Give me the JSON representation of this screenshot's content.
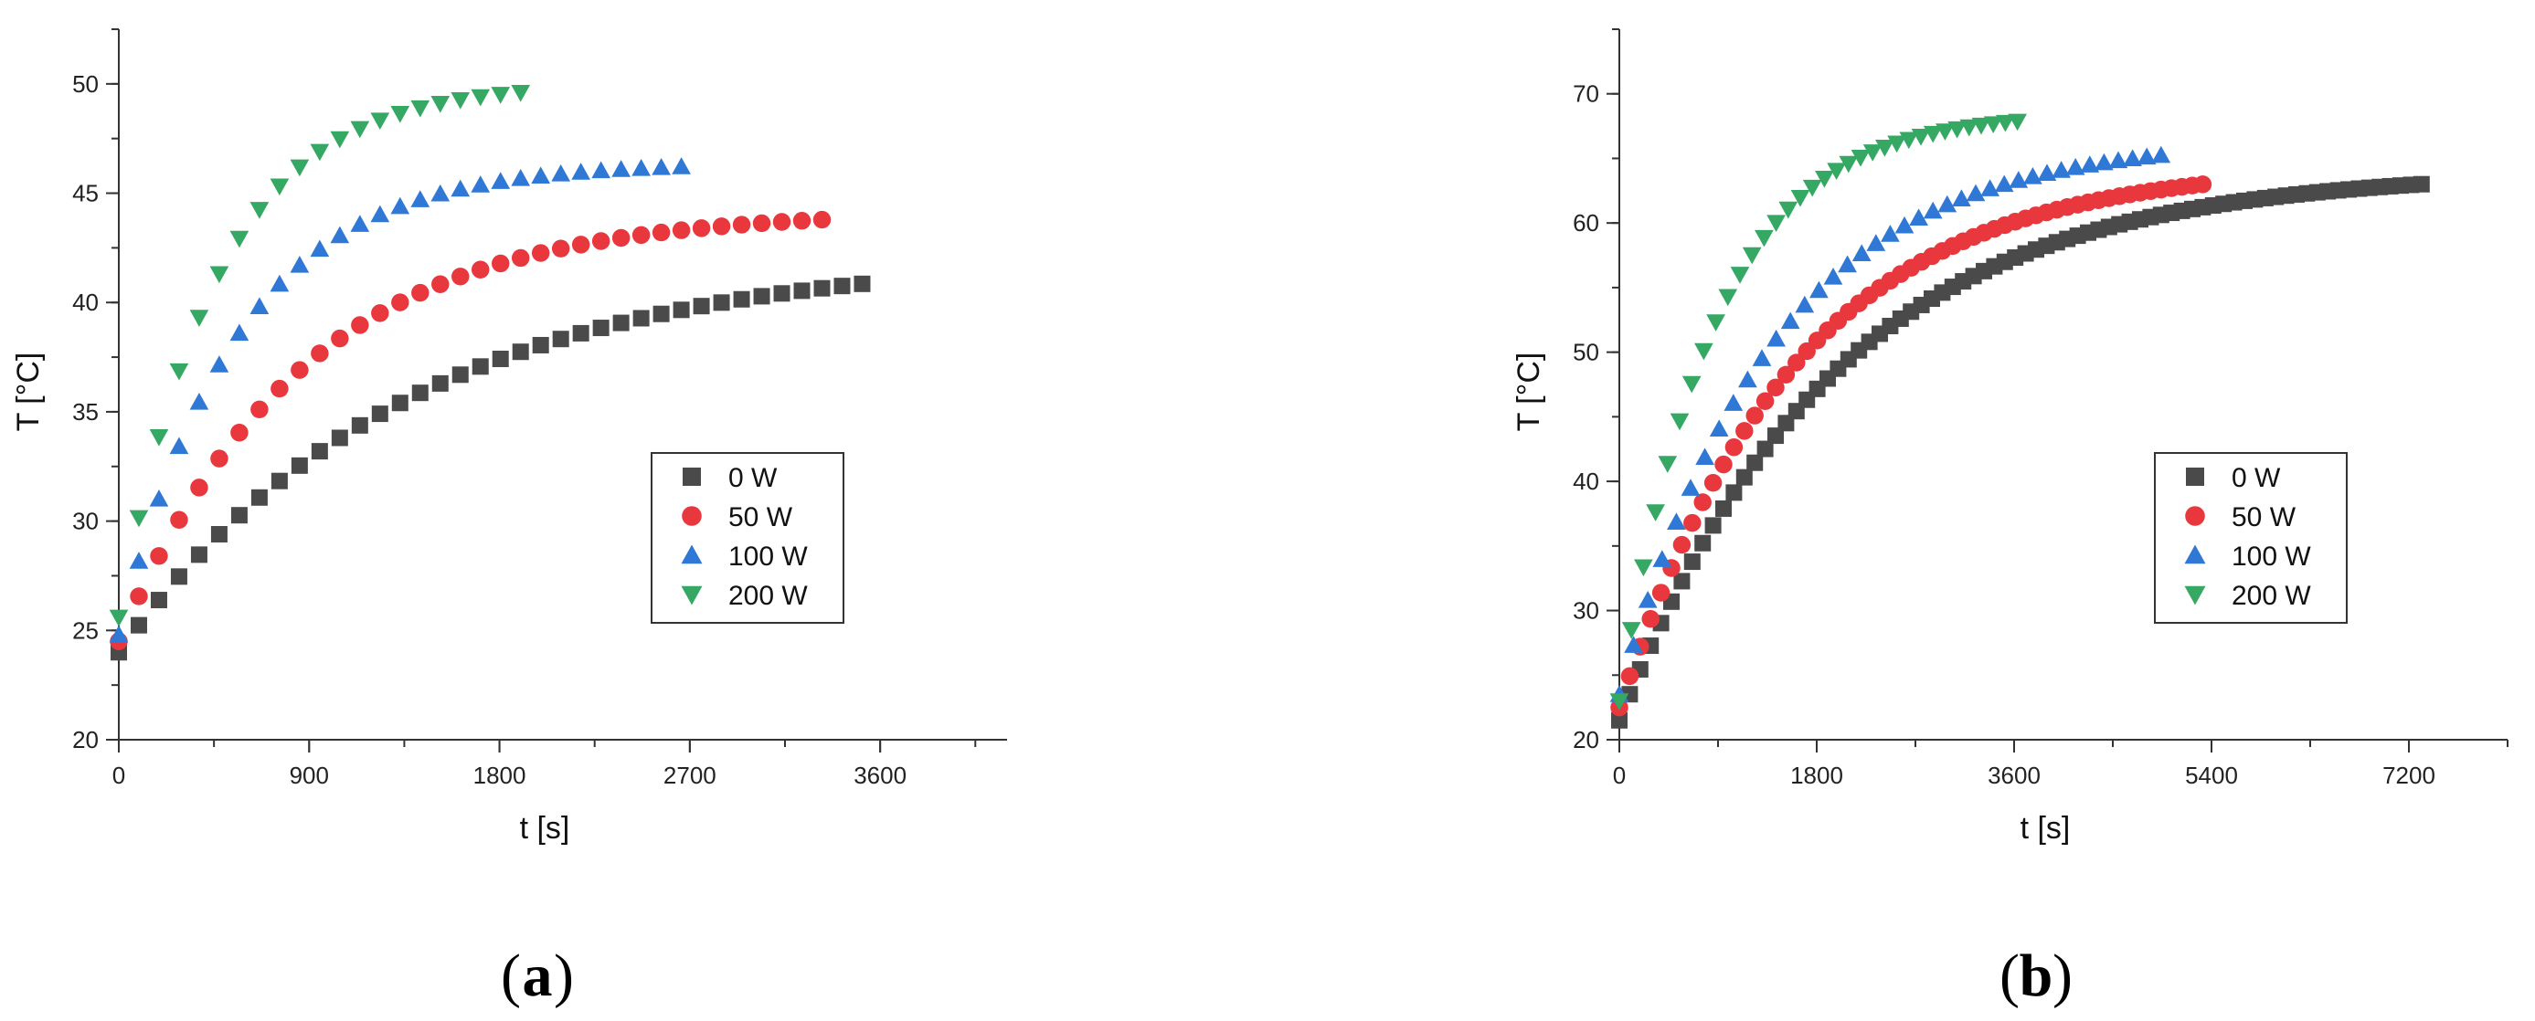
{
  "chart_data": [
    {
      "type": "scatter",
      "panel_label": "a",
      "xlabel": "t [s]",
      "ylabel": "T [°C]",
      "xlim": [
        0,
        4200
      ],
      "ylim": [
        20,
        52.5
      ],
      "xticks": [
        0,
        900,
        1800,
        2700,
        3600
      ],
      "xtick_labels": [
        "0",
        "900",
        "1800",
        "2700",
        "3600"
      ],
      "yticks": [
        20,
        25,
        30,
        35,
        40,
        45,
        50
      ],
      "ytick_labels": [
        "20",
        "25",
        "30",
        "35",
        "40",
        "45",
        "50"
      ],
      "legend_position": "center-right",
      "series": [
        {
          "name": "0 W",
          "marker": "square",
          "color": "#4a4a4a",
          "model": {
            "T0": 24.0,
            "Tinf": 42.2,
            "tau": 1350
          },
          "t_start": 0,
          "t_end": 3550,
          "dt": 95
        },
        {
          "name": "50 W",
          "marker": "circle",
          "color": "#e8383d",
          "model": {
            "T0": 24.5,
            "Tinf": 44.2,
            "tau": 860
          },
          "t_start": 0,
          "t_end": 3370,
          "dt": 95
        },
        {
          "name": "100 W",
          "marker": "triangle-up",
          "color": "#2f78d6",
          "model": {
            "T0": 24.8,
            "Tinf": 46.4,
            "tau": 560
          },
          "t_start": 0,
          "t_end": 2680,
          "dt": 95
        },
        {
          "name": "200 W",
          "marker": "triangle-down",
          "color": "#35a863",
          "model": {
            "T0": 25.6,
            "Tinf": 50.0,
            "tau": 460
          },
          "t_start": 0,
          "t_end": 1990,
          "dt": 95
        }
      ]
    },
    {
      "type": "scatter",
      "panel_label": "b",
      "xlabel": "t [s]",
      "ylabel": "T [°C]",
      "xlim": [
        0,
        8100
      ],
      "ylim": [
        20,
        75
      ],
      "xticks": [
        0,
        1800,
        3600,
        5400,
        7200
      ],
      "xtick_labels": [
        "0",
        "1800",
        "3600",
        "5400",
        "7200"
      ],
      "yticks": [
        20,
        30,
        40,
        50,
        60,
        70
      ],
      "ytick_labels": [
        "20",
        "30",
        "40",
        "50",
        "60",
        "70"
      ],
      "legend_position": "center-right",
      "series": [
        {
          "name": "0 W",
          "marker": "square",
          "color": "#4a4a4a",
          "model": {
            "T0": 21.5,
            "Tinf": 64.0,
            "tau": 1950
          },
          "t_start": 0,
          "t_end": 7350,
          "dt": 95
        },
        {
          "name": "50 W",
          "marker": "circle",
          "color": "#e8383d",
          "model": {
            "T0": 22.5,
            "Tinf": 64.5,
            "tau": 1600
          },
          "t_start": 0,
          "t_end": 5330,
          "dt": 95
        },
        {
          "name": "100 W",
          "marker": "triangle-up",
          "color": "#2f78d6",
          "model": {
            "T0": 23.5,
            "Tinf": 66.5,
            "tau": 1400
          },
          "t_start": 0,
          "t_end": 4980,
          "dt": 130
        },
        {
          "name": "200 W",
          "marker": "triangle-down",
          "color": "#35a863",
          "model": {
            "T0": 23.0,
            "Tinf": 68.5,
            "tau": 850
          },
          "t_start": 0,
          "t_end": 3680,
          "dt": 110
        }
      ]
    }
  ]
}
